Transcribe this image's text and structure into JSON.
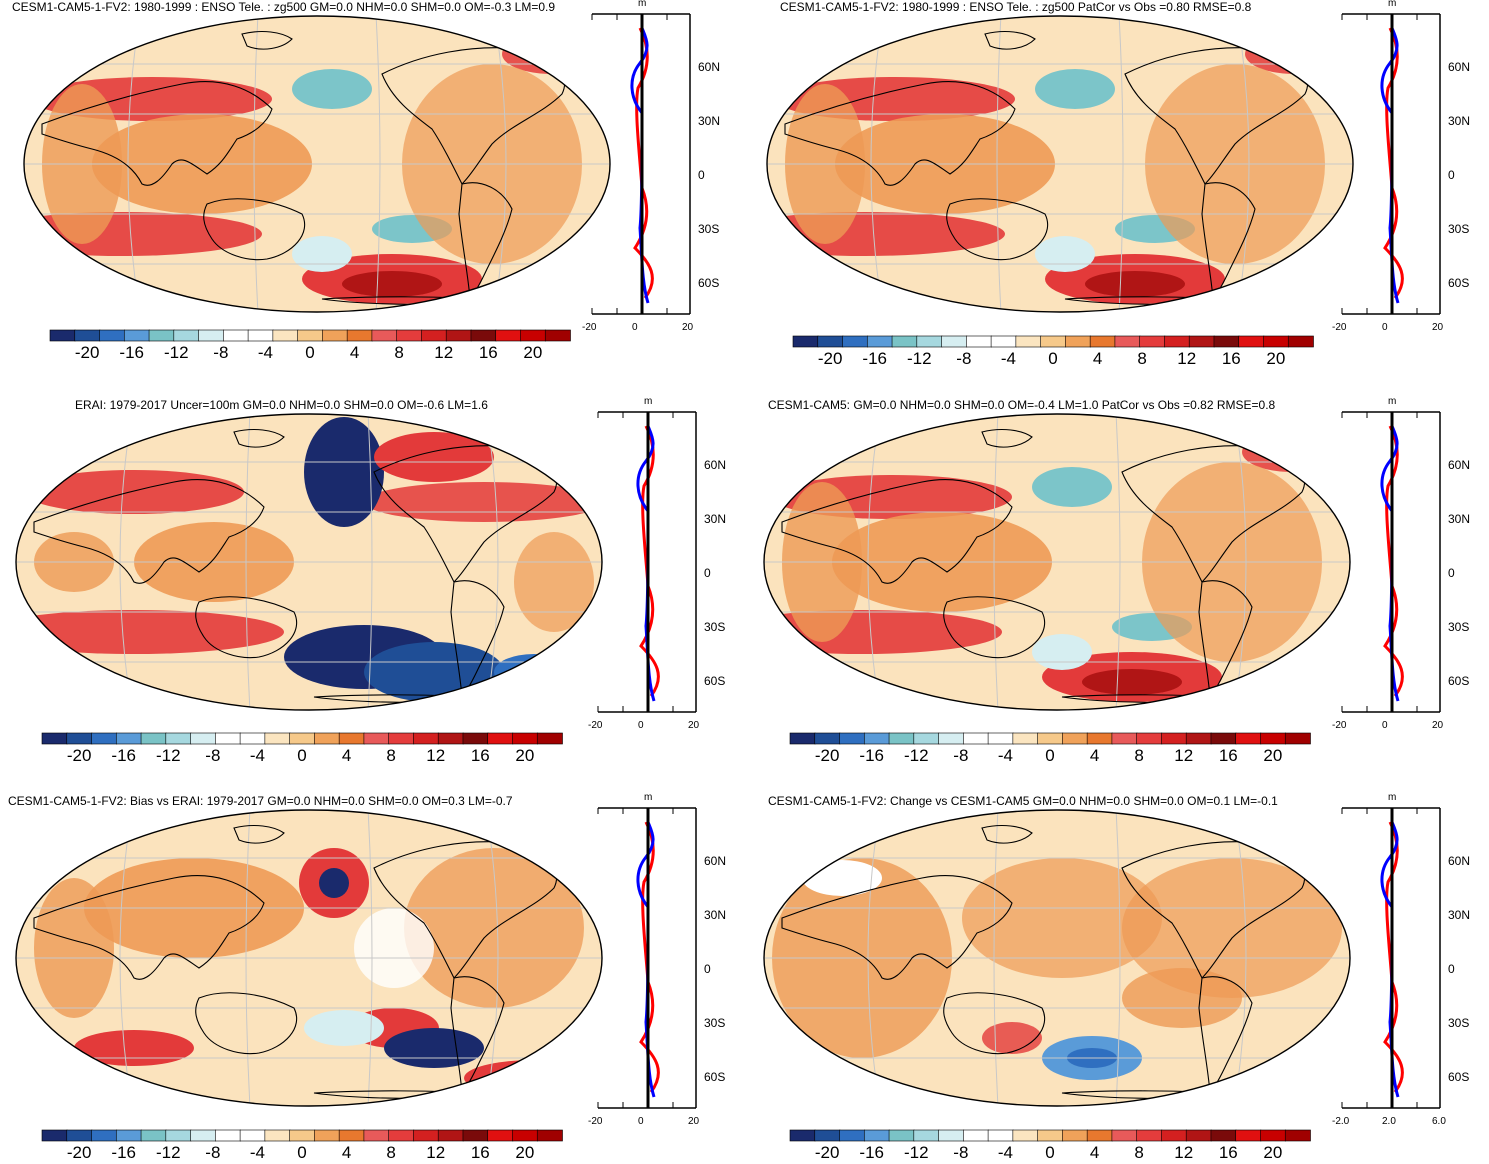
{
  "colors": {
    "scale": [
      "#1a2a6c",
      "#1f4e96",
      "#2f6fc0",
      "#5a9bd8",
      "#7ac3c6",
      "#a6d8df",
      "#d6eef1",
      "#ffffff",
      "#ffffff",
      "#fbe5c0",
      "#f6c98a",
      "#f0a25a",
      "#e8782e",
      "#e85a5a",
      "#e43c3c",
      "#d42020",
      "#b01515",
      "#7a0a0a",
      "#e01010",
      "#c80000",
      "#a00000"
    ],
    "map_warm": "#ee9a55",
    "map_red": "#e33a3a",
    "map_cool": "#7cc5c9",
    "map_blue": "#1a2a6c",
    "profile_red": "#ff0000",
    "profile_blue": "#0000ff"
  },
  "colorbar_labels": [
    "-20",
    "-16",
    "-12",
    "-8",
    "-4",
    "0",
    "4",
    "8",
    "12",
    "16",
    "20"
  ],
  "panels": [
    {
      "title": "CESM1-CAM5-1-FV2: 1980-1999 : ENSO Tele. : zg500 GM=0.0 NHM=0.0 SHM=0.0 OM=-0.3 LM=0.9",
      "lat_labels": [
        "60N",
        "30N",
        "0",
        "30S",
        "60S"
      ],
      "profile_unit": "m",
      "profile_ticks": [
        "-20",
        "0",
        "20"
      ]
    },
    {
      "title": "CESM1-CAM5-1-FV2: 1980-1999 : ENSO Tele. : zg500 PatCor vs Obs =0.80 RMSE=0.8",
      "lat_labels": [
        "60N",
        "30N",
        "0",
        "30S",
        "60S"
      ],
      "profile_unit": "m",
      "profile_ticks": [
        "-20",
        "0",
        "20"
      ]
    },
    {
      "title": "ERAI: 1979-2017 Uncer=100m GM=0.0 NHM=0.0 SHM=0.0 OM=-0.6 LM=1.6",
      "lat_labels": [
        "60N",
        "30N",
        "0",
        "30S",
        "60S"
      ],
      "profile_unit": "m",
      "profile_ticks": [
        "-20",
        "0",
        "20"
      ]
    },
    {
      "title": "CESM1-CAM5: GM=0.0 NHM=0.0 SHM=0.0 OM=-0.4 LM=1.0 PatCor vs Obs =0.82 RMSE=0.8",
      "lat_labels": [
        "60N",
        "30N",
        "0",
        "30S",
        "60S"
      ],
      "profile_unit": "m",
      "profile_ticks": [
        "-20",
        "0",
        "20"
      ]
    },
    {
      "title": "CESM1-CAM5-1-FV2: Bias vs ERAI: 1979-2017 GM=0.0 NHM=0.0 SHM=0.0 OM=0.3 LM=-0.7",
      "lat_labels": [
        "60N",
        "30N",
        "0",
        "30S",
        "60S"
      ],
      "profile_unit": "m",
      "profile_ticks": [
        "-20",
        "0",
        "20"
      ]
    },
    {
      "title": "CESM1-CAM5-1-FV2: Change vs CESM1-CAM5 GM=0.0 NHM=0.0 SHM=0.0 OM=0.1 LM=-0.1",
      "lat_labels": [
        "60N",
        "30N",
        "0",
        "30S",
        "60S"
      ],
      "profile_unit": "m",
      "profile_ticks": [
        "-2.0",
        "2.0",
        "6.0"
      ]
    }
  ]
}
